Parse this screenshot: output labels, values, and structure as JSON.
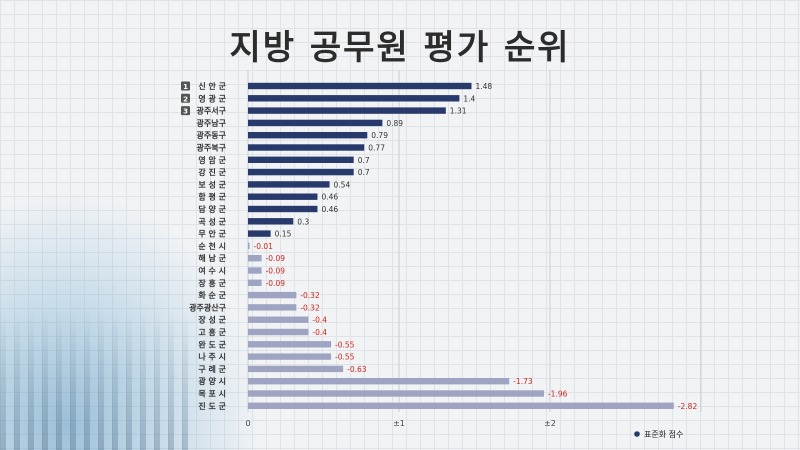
{
  "title": "지방 공무원 평가 순위",
  "chart_data": {
    "type": "bar",
    "orientation": "horizontal",
    "title": "지방 공무원 평가 순위",
    "categories": [
      "신 안 군",
      "영 광 군",
      "광주서구",
      "광주남구",
      "광주동구",
      "광주북구",
      "영 암 군",
      "강 진 군",
      "보 성 군",
      "함 평 군",
      "담 양 군",
      "곡 성 군",
      "무 안 군",
      "순 천 시",
      "해 남 군",
      "여 수 시",
      "장 흥 군",
      "화 순 군",
      "광주광산구",
      "장 성 군",
      "고 흥 군",
      "완 도 군",
      "나 주 시",
      "구 례 군",
      "광 양 시",
      "목 포 시",
      "진 도 군"
    ],
    "values": [
      1.48,
      1.4,
      1.31,
      0.89,
      0.79,
      0.77,
      0.7,
      0.7,
      0.54,
      0.46,
      0.46,
      0.3,
      0.15,
      -0.01,
      -0.09,
      -0.09,
      -0.09,
      -0.32,
      -0.32,
      -0.4,
      -0.4,
      -0.55,
      -0.55,
      -0.63,
      -1.73,
      -1.96,
      -2.82
    ],
    "value_labels": [
      "1.48",
      "1.4",
      "1.31",
      "0.89",
      "0.79",
      "0.77",
      "0.7",
      "0.7",
      "0.54",
      "0.46",
      "0.46",
      "0.3",
      "0.15",
      "-0.01",
      "-0.09",
      "-0.09",
      "-0.09",
      "-0.32",
      "-0.32",
      "-0.4",
      "-0.4",
      "-0.55",
      "-0.55",
      "-0.63",
      "-1.73",
      "-1.96",
      "-2.82"
    ],
    "rank_badges": [
      "1",
      "2",
      "3"
    ],
    "x_ticks": [
      {
        "value": 0,
        "label": "0"
      },
      {
        "value": 1,
        "label": "±1"
      },
      {
        "value": 2,
        "label": "±2"
      }
    ],
    "xlim": [
      0,
      3
    ],
    "x_axis_values": "absolute magnitude",
    "legend": {
      "label": "표준화 점수",
      "position": "bottom-right"
    },
    "grid": true,
    "colors": {
      "positive": "#283a6b",
      "negative": "#9ea4c2",
      "positive_label": "#333333",
      "negative_label": "#d0251c",
      "badge": "#555555"
    }
  }
}
